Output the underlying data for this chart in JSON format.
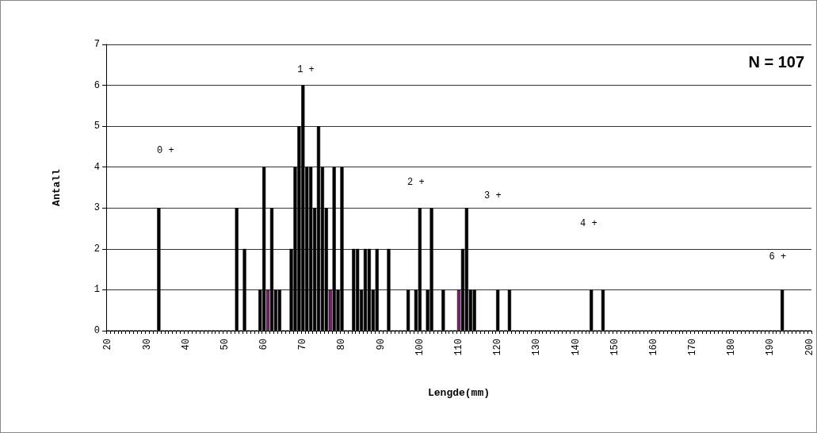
{
  "chart_data": {
    "type": "bar",
    "categories": [
      "20",
      null,
      null,
      null,
      null,
      null,
      null,
      null,
      null,
      null,
      "30",
      null,
      null,
      null,
      null,
      null,
      null,
      null,
      null,
      null,
      "40",
      null,
      null,
      null,
      null,
      null,
      null,
      null,
      null,
      null,
      "50",
      null,
      null,
      null,
      null,
      null,
      null,
      null,
      null,
      null,
      "60",
      null,
      null,
      null,
      null,
      null,
      null,
      null,
      null,
      null,
      "70",
      null,
      null,
      null,
      null,
      null,
      null,
      null,
      null,
      null,
      "80",
      null,
      null,
      null,
      null,
      null,
      null,
      null,
      null,
      null,
      "90",
      null,
      null,
      null,
      null,
      null,
      null,
      null,
      null,
      null,
      "100",
      null,
      null,
      null,
      null,
      null,
      null,
      null,
      null,
      null,
      "110",
      null,
      null,
      null,
      null,
      null,
      null,
      null,
      null,
      null,
      "120",
      null,
      null,
      null,
      null,
      null,
      null,
      null,
      null,
      null,
      "130",
      null,
      null,
      null,
      null,
      null,
      null,
      null,
      null,
      null,
      "140",
      null,
      null,
      null,
      null,
      null,
      null,
      null,
      null,
      null,
      "150",
      null,
      null,
      null,
      null,
      null,
      null,
      null,
      null,
      null,
      "160",
      null,
      null,
      null,
      null,
      null,
      null,
      null,
      null,
      null,
      "170",
      null,
      null,
      null,
      null,
      null,
      null,
      null,
      null,
      null,
      "180",
      null,
      null,
      null,
      null,
      null,
      null,
      null,
      null,
      null,
      "190",
      null,
      null,
      null,
      null,
      null,
      null,
      null,
      null,
      null,
      "200"
    ],
    "values": [
      0,
      0,
      0,
      0,
      0,
      0,
      0,
      0,
      0,
      0,
      0,
      0,
      0,
      3,
      0,
      0,
      0,
      0,
      0,
      0,
      0,
      0,
      0,
      0,
      0,
      0,
      0,
      0,
      0,
      0,
      0,
      0,
      0,
      3,
      0,
      2,
      0,
      0,
      0,
      1,
      4,
      1,
      3,
      1,
      1,
      0,
      0,
      2,
      4,
      5,
      6,
      4,
      4,
      3,
      5,
      4,
      3,
      1,
      4,
      1,
      4,
      0,
      0,
      2,
      2,
      1,
      2,
      2,
      1,
      2,
      0,
      0,
      2,
      0,
      0,
      0,
      0,
      1,
      0,
      1,
      3,
      0,
      1,
      3,
      0,
      0,
      1,
      0,
      0,
      0,
      1,
      2,
      3,
      1,
      1,
      0,
      0,
      0,
      0,
      0,
      1,
      0,
      0,
      1,
      0,
      0,
      0,
      0,
      0,
      0,
      0,
      0,
      0,
      0,
      0,
      0,
      0,
      0,
      0,
      0,
      0,
      0,
      0,
      0,
      1,
      0,
      0,
      1,
      0,
      0,
      0,
      0,
      0,
      0,
      0,
      0,
      0,
      0,
      0,
      0,
      0,
      0,
      0,
      0,
      0,
      0,
      0,
      0,
      0,
      0,
      0,
      0,
      0,
      0,
      0,
      0,
      0,
      0,
      0,
      0,
      0,
      0,
      0,
      0,
      0,
      0,
      0,
      0,
      0,
      0,
      0,
      0,
      0,
      1,
      0,
      0,
      0,
      0,
      0,
      0,
      0
    ],
    "colors": [
      "#000000",
      "#000000",
      "#000000",
      "#000000",
      "#000000",
      "#000000",
      "#000000",
      "#000000",
      "#000000",
      "#000000",
      "#000000",
      "#000000",
      "#000000",
      "#000000",
      "#000000",
      "#000000",
      "#000000",
      "#000000",
      "#000000",
      "#000000",
      "#000000",
      "#000000",
      "#000000",
      "#000000",
      "#000000",
      "#000000",
      "#000000",
      "#000000",
      "#000000",
      "#000000",
      "#000000",
      "#000000",
      "#000000",
      "#000000",
      "#000000",
      "#000000",
      "#000000",
      "#000000",
      "#000000",
      "#000000",
      "#000000",
      "#7a1f6e",
      "#000000",
      "#000000",
      "#000000",
      "#000000",
      "#000000",
      "#000000",
      "#000000",
      "#000000",
      "#000000",
      "#000000",
      "#000000",
      "#000000",
      "#000000",
      "#000000",
      "#000000",
      "#7a1f6e",
      "#000000",
      "#000000",
      "#000000",
      "#000000",
      "#000000",
      "#000000",
      "#000000",
      "#000000",
      "#000000",
      "#000000",
      "#000000",
      "#000000",
      "#000000",
      "#000000",
      "#000000",
      "#000000",
      "#000000",
      "#000000",
      "#000000",
      "#000000",
      "#000000",
      "#000000",
      "#000000",
      "#000000",
      "#000000",
      "#000000",
      "#000000",
      "#000000",
      "#000000",
      "#000000",
      "#000000",
      "#000000",
      "#7a1f6e",
      "#000000",
      "#000000",
      "#000000",
      "#000000",
      "#000000",
      "#000000",
      "#000000",
      "#000000",
      "#000000",
      "#000000",
      "#000000",
      "#000000",
      "#000000",
      "#000000",
      "#000000",
      "#000000",
      "#000000",
      "#000000",
      "#000000",
      "#000000",
      "#000000",
      "#000000",
      "#000000",
      "#000000",
      "#000000",
      "#000000",
      "#000000",
      "#000000",
      "#000000",
      "#000000",
      "#000000",
      "#000000",
      "#000000",
      "#000000",
      "#000000",
      "#000000",
      "#000000",
      "#000000",
      "#000000",
      "#000000",
      "#000000",
      "#000000",
      "#000000",
      "#000000",
      "#000000",
      "#000000",
      "#000000",
      "#000000",
      "#000000",
      "#000000",
      "#000000",
      "#000000",
      "#000000",
      "#000000",
      "#000000",
      "#000000",
      "#000000",
      "#000000",
      "#000000",
      "#000000",
      "#000000",
      "#000000",
      "#000000",
      "#000000",
      "#000000",
      "#000000",
      "#000000",
      "#000000",
      "#000000",
      "#000000",
      "#000000",
      "#000000",
      "#000000",
      "#000000",
      "#000000",
      "#000000",
      "#000000",
      "#000000",
      "#000000",
      "#000000",
      "#000000",
      "#000000",
      "#000000",
      "#000000",
      "#000000",
      "#000000",
      "#000000",
      "#000000",
      "#000000",
      "#000000"
    ],
    "xlabel": "Lengde(mm)",
    "ylabel": "Antall",
    "ylim": [
      0,
      7
    ],
    "yticks": [
      0,
      1,
      2,
      3,
      4,
      5,
      6,
      7
    ],
    "grid": "y",
    "annotations": [
      "0 +",
      "1 +",
      "2 +",
      "3 +",
      "4 +",
      "6 +",
      "N = 107"
    ]
  }
}
